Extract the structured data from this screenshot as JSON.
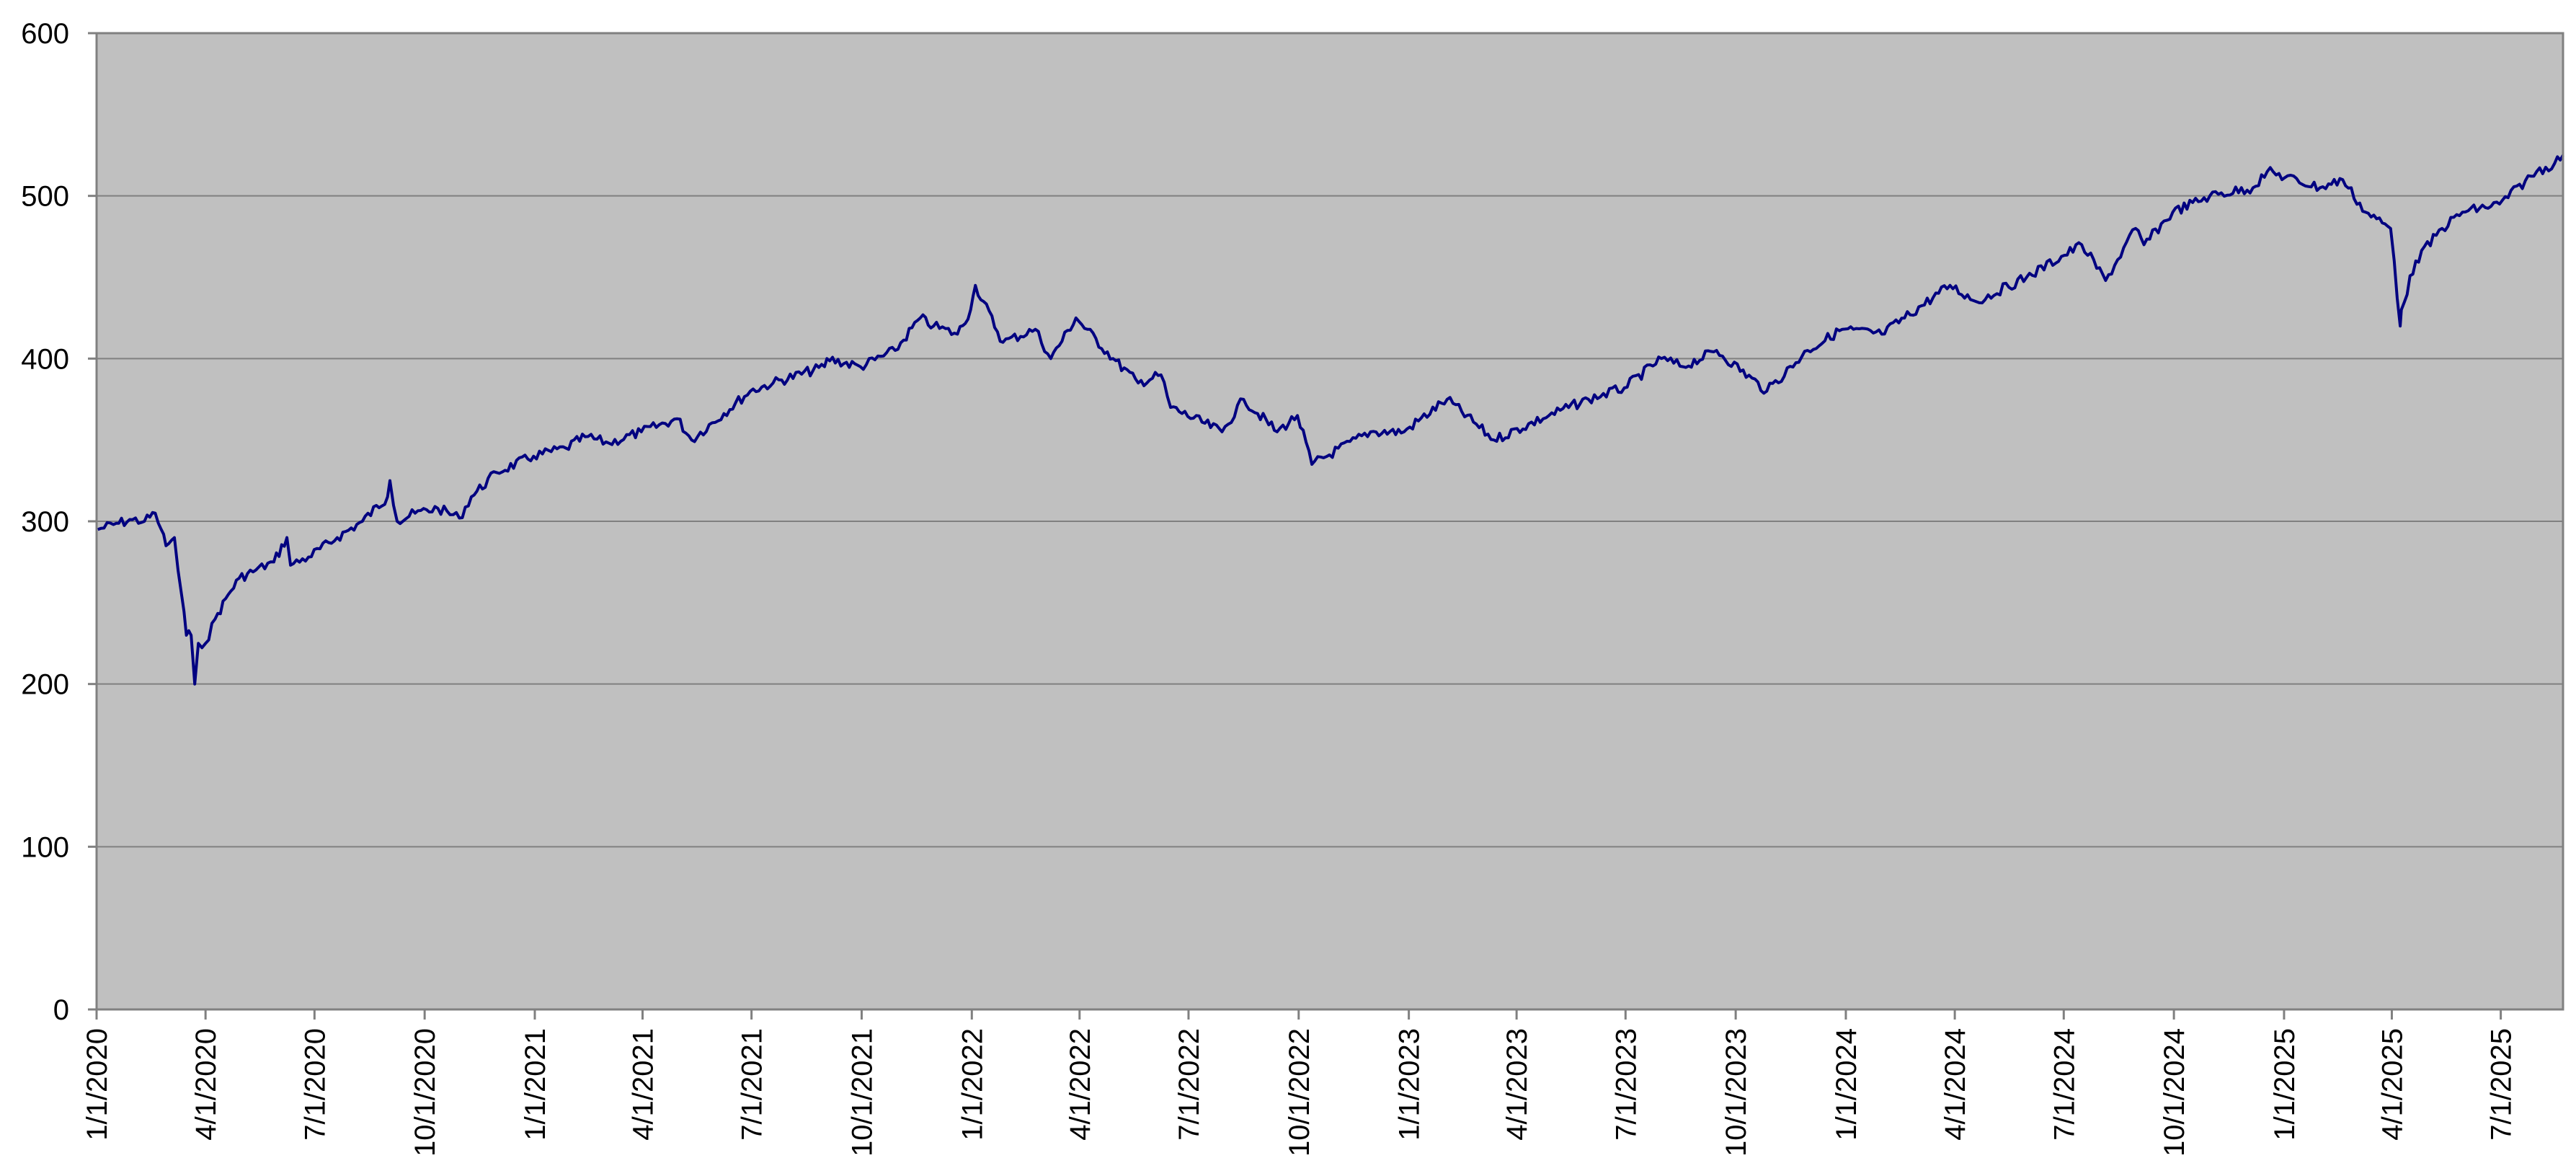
{
  "chart_data": {
    "type": "line",
    "title": "",
    "xlabel": "",
    "ylabel": "",
    "ylim": [
      0,
      600
    ],
    "yticks": [
      0,
      100,
      200,
      300,
      400,
      500,
      600
    ],
    "xlim": [
      "2020-01-01",
      "2025-08-22"
    ],
    "xtick_labels": [
      "1/1/2020",
      "4/1/2020",
      "7/1/2020",
      "10/1/2020",
      "1/1/2021",
      "4/1/2021",
      "7/1/2021",
      "10/1/2021",
      "1/1/2022",
      "4/1/2022",
      "7/1/2022",
      "10/1/2022",
      "1/1/2023",
      "4/1/2023",
      "7/1/2023",
      "10/1/2023",
      "1/1/2024",
      "4/1/2024",
      "7/1/2024",
      "10/1/2024",
      "1/1/2025",
      "4/1/2025",
      "7/1/2025"
    ],
    "xtick_dates": [
      "2020-01-01",
      "2020-04-01",
      "2020-07-01",
      "2020-10-01",
      "2021-01-01",
      "2021-04-01",
      "2021-07-01",
      "2021-10-01",
      "2022-01-01",
      "2022-04-01",
      "2022-07-01",
      "2022-10-01",
      "2023-01-01",
      "2023-04-01",
      "2023-07-01",
      "2023-10-01",
      "2024-01-01",
      "2024-04-01",
      "2024-07-01",
      "2024-10-01",
      "2025-01-01",
      "2025-04-01",
      "2025-07-01"
    ],
    "grid": true,
    "legend": "none",
    "colors": {
      "plot_background": "#c0c0c0",
      "line": "#000080",
      "grid": "#808080"
    },
    "series": [
      {
        "x": [
          "2020-01-02",
          "2020-01-15",
          "2020-01-31",
          "2020-02-10",
          "2020-02-19",
          "2020-02-24",
          "2020-02-28",
          "2020-03-06",
          "2020-03-09",
          "2020-03-12",
          "2020-03-16",
          "2020-03-20",
          "2020-03-23",
          "2020-03-26",
          "2020-04-01",
          "2020-04-09",
          "2020-04-20",
          "2020-04-29",
          "2020-05-13",
          "2020-05-28",
          "2020-06-08",
          "2020-06-11",
          "2020-06-26",
          "2020-07-20",
          "2020-08-10",
          "2020-08-31",
          "2020-09-02",
          "2020-09-08",
          "2020-09-23",
          "2020-10-12",
          "2020-10-30",
          "2020-11-09",
          "2020-11-30",
          "2020-12-31",
          "2021-01-27",
          "2021-02-12",
          "2021-03-04",
          "2021-03-31",
          "2021-04-30",
          "2021-05-12",
          "2021-06-30",
          "2021-07-19",
          "2021-08-31",
          "2021-09-02",
          "2021-09-30",
          "2021-10-29",
          "2021-11-19",
          "2021-11-30",
          "2021-12-20",
          "2021-12-31",
          "2022-01-04",
          "2022-01-27",
          "2022-02-23",
          "2022-03-08",
          "2022-03-29",
          "2022-04-29",
          "2022-05-20",
          "2022-06-08",
          "2022-06-16",
          "2022-07-29",
          "2022-08-16",
          "2022-09-13",
          "2022-09-30",
          "2022-10-12",
          "2022-11-30",
          "2022-12-28",
          "2023-02-02",
          "2023-03-13",
          "2023-04-28",
          "2023-05-31",
          "2023-06-30",
          "2023-07-31",
          "2023-08-18",
          "2023-09-15",
          "2023-10-27",
          "2023-11-30",
          "2023-12-29",
          "2024-01-31",
          "2024-03-28",
          "2024-04-19",
          "2024-05-31",
          "2024-07-16",
          "2024-08-05",
          "2024-08-30",
          "2024-09-06",
          "2024-09-30",
          "2024-10-31",
          "2024-12-06",
          "2024-12-18",
          "2025-01-31",
          "2025-02-19",
          "2025-03-10",
          "2025-03-31",
          "2025-04-03",
          "2025-04-08",
          "2025-04-09",
          "2025-04-21",
          "2025-05-13",
          "2025-05-30",
          "2025-06-30",
          "2025-07-31",
          "2025-08-15",
          "2025-08-22"
        ],
        "y": [
          295,
          298,
          301,
          300,
          305,
          295,
          285,
          290,
          270,
          255,
          230,
          230,
          200,
          225,
          225,
          240,
          255,
          265,
          270,
          275,
          290,
          273,
          278,
          290,
          300,
          315,
          325,
          300,
          305,
          308,
          302,
          315,
          330,
          340,
          345,
          352,
          348,
          355,
          363,
          350,
          380,
          385,
          395,
          400,
          395,
          405,
          425,
          420,
          415,
          430,
          445,
          410,
          418,
          400,
          425,
          400,
          385,
          390,
          370,
          355,
          375,
          355,
          365,
          335,
          355,
          355,
          375,
          350,
          365,
          375,
          382,
          400,
          395,
          405,
          380,
          405,
          418,
          415,
          445,
          435,
          450,
          470,
          448,
          480,
          470,
          490,
          500,
          505,
          515,
          505,
          510,
          490,
          480,
          460,
          420,
          430,
          460,
          480,
          490,
          495,
          515,
          520,
          525
        ]
      }
    ]
  }
}
